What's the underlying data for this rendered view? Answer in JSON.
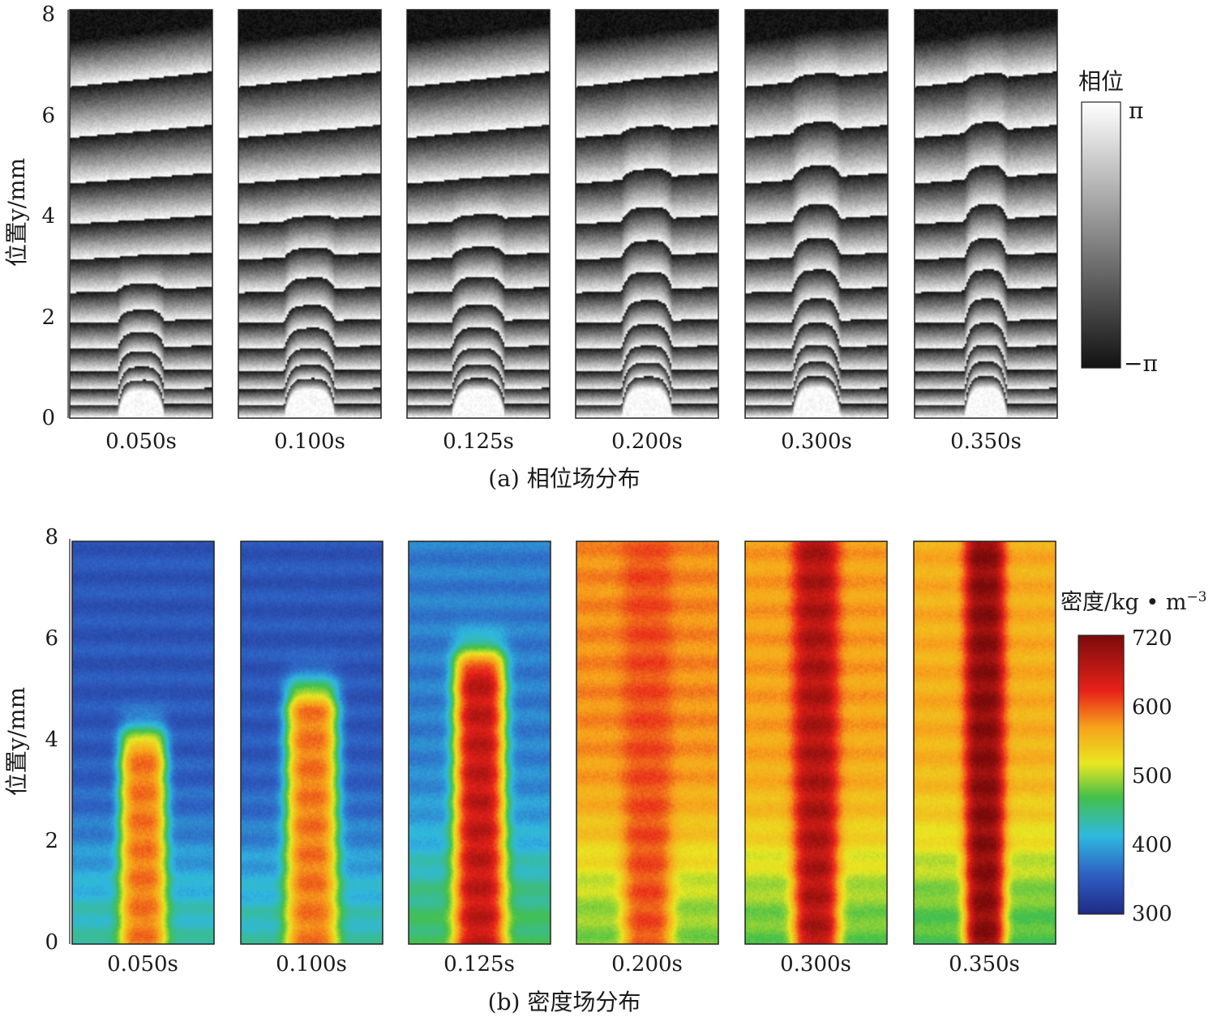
{
  "figure": {
    "part_a": {
      "caption": "(a) 相位场分布",
      "y_axis_label": "位置y/mm",
      "y_ticks": [
        "0",
        "2",
        "4",
        "6",
        "8"
      ],
      "panels": [
        {
          "time": "0.050s",
          "bump_height_mm": 3.0,
          "bump_width": 0.33
        },
        {
          "time": "0.100s",
          "bump_height_mm": 4.2,
          "bump_width": 0.36
        },
        {
          "time": "0.125s",
          "bump_height_mm": 4.5,
          "bump_width": 0.38
        },
        {
          "time": "0.200s",
          "bump_height_mm": 6.6,
          "bump_width": 0.36
        },
        {
          "time": "0.300s",
          "bump_height_mm": 8.0,
          "bump_width": 0.34
        },
        {
          "time": "0.350s",
          "bump_height_mm": 8.0,
          "bump_width": 0.3
        }
      ],
      "colorbar": {
        "title": "相位",
        "max_label": "π",
        "min_label": "−π",
        "colors": [
          "#ffffff",
          "#121212"
        ]
      }
    },
    "part_b": {
      "caption": "(b) 密度场分布",
      "y_axis_label": "位置y/mm",
      "y_ticks": [
        "0",
        "2",
        "4",
        "6",
        "8"
      ],
      "panels": [
        {
          "time": "0.050s",
          "plume_height_mm": 3.7,
          "plume_width": 0.34,
          "plume_peak": 620,
          "background": 350
        },
        {
          "time": "0.100s",
          "plume_height_mm": 4.6,
          "plume_width": 0.38,
          "plume_peak": 620,
          "background": 350
        },
        {
          "time": "0.125s",
          "plume_height_mm": 5.3,
          "plume_width": 0.38,
          "plume_peak": 680,
          "background": 380
        },
        {
          "time": "0.200s",
          "plume_height_mm": 7.6,
          "plume_width": 0.36,
          "plume_peak": 640,
          "background": 610
        },
        {
          "time": "0.300s",
          "plume_height_mm": 8.0,
          "plume_width": 0.34,
          "plume_peak": 690,
          "background": 600
        },
        {
          "time": "0.350s",
          "plume_height_mm": 8.0,
          "plume_width": 0.3,
          "plume_peak": 710,
          "background": 590
        }
      ],
      "colorbar": {
        "title": "密度/kg • m",
        "title_sup": "−3",
        "ticks": [
          "720",
          "600",
          "500",
          "400",
          "300"
        ],
        "values": [
          720,
          600,
          500,
          400,
          300
        ],
        "colors": [
          "#7a0a0a",
          "#e8221a",
          "#f7a21b",
          "#e9e722",
          "#44c04a",
          "#2fb8e0",
          "#2e5fc2",
          "#1f2a86"
        ]
      }
    }
  }
}
